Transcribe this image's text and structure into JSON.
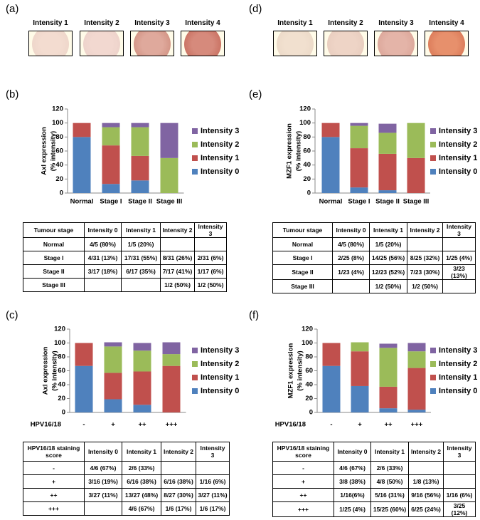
{
  "panels": [
    {
      "label": "(a)",
      "intensities": [
        "Intensity 1",
        "Intensity 2",
        "Intensity 3",
        "Intensity 4"
      ]
    },
    {
      "label": "(d)",
      "intensities": [
        "Intensity 1",
        "Intensity 2",
        "Intensity 3",
        "Intensity 4"
      ]
    }
  ],
  "chart_data": [
    {
      "type": "bar",
      "stacked": true,
      "panel_label": "(b)",
      "ylabel": [
        "Axl expression",
        "(% intensity)"
      ],
      "categories": [
        "Normal",
        "Stage I",
        "Stage II",
        "Stage III"
      ],
      "series": [
        {
          "name": "Intensity 0",
          "color": "#4f81bd",
          "values": [
            80,
            13,
            18,
            0
          ]
        },
        {
          "name": "Intensity 1",
          "color": "#c0504d",
          "values": [
            20,
            55,
            35,
            0
          ]
        },
        {
          "name": "Intensity 2",
          "color": "#9bbb59",
          "values": [
            0,
            26,
            41,
            50
          ]
        },
        {
          "name": "Intensity 3",
          "color": "#8064a2",
          "values": [
            0,
            6,
            6,
            50
          ]
        }
      ],
      "ylim": [
        0,
        120
      ],
      "yticks": [
        0,
        20,
        40,
        60,
        80,
        100,
        120
      ]
    },
    {
      "type": "bar",
      "stacked": true,
      "panel_label": "(e)",
      "ylabel": [
        "MZF1 expression",
        "(% intensity)"
      ],
      "categories": [
        "Normal",
        "Stage I",
        "Stage II",
        "Stage III"
      ],
      "series": [
        {
          "name": "Intensity 0",
          "color": "#4f81bd",
          "values": [
            80,
            8,
            4,
            0
          ]
        },
        {
          "name": "Intensity 1",
          "color": "#c0504d",
          "values": [
            20,
            56,
            52,
            50
          ]
        },
        {
          "name": "Intensity 2",
          "color": "#9bbb59",
          "values": [
            0,
            32,
            30,
            50
          ]
        },
        {
          "name": "Intensity 3",
          "color": "#8064a2",
          "values": [
            0,
            4,
            13,
            0
          ]
        }
      ],
      "ylim": [
        0,
        120
      ],
      "yticks": [
        0,
        20,
        40,
        60,
        80,
        100,
        120
      ]
    },
    {
      "type": "bar",
      "stacked": true,
      "panel_label": "(c)",
      "ylabel": [
        "Axl expression",
        "(% intensity)"
      ],
      "xlabel": "HPV16/18",
      "categories": [
        "-",
        "+",
        "++",
        "+++"
      ],
      "series": [
        {
          "name": "Intensity 0",
          "color": "#4f81bd",
          "values": [
            67,
            19,
            11,
            0
          ]
        },
        {
          "name": "Intensity 1",
          "color": "#c0504d",
          "values": [
            33,
            38,
            48,
            67
          ]
        },
        {
          "name": "Intensity 2",
          "color": "#9bbb59",
          "values": [
            0,
            38,
            30,
            17
          ]
        },
        {
          "name": "Intensity 3",
          "color": "#8064a2",
          "values": [
            0,
            6,
            11,
            17
          ]
        }
      ],
      "ylim": [
        0,
        120
      ],
      "yticks": [
        0,
        20,
        40,
        60,
        80,
        100,
        120
      ]
    },
    {
      "type": "bar",
      "stacked": true,
      "panel_label": "(f)",
      "ylabel": [
        "MZF1 expression",
        "(% intensity)"
      ],
      "xlabel": "HPV16/18",
      "categories": [
        "-",
        "+",
        "++",
        "+++"
      ],
      "series": [
        {
          "name": "Intensity 0",
          "color": "#4f81bd",
          "values": [
            67,
            38,
            6,
            4
          ]
        },
        {
          "name": "Intensity 1",
          "color": "#c0504d",
          "values": [
            33,
            50,
            31,
            60
          ]
        },
        {
          "name": "Intensity 2",
          "color": "#9bbb59",
          "values": [
            0,
            13,
            56,
            24
          ]
        },
        {
          "name": "Intensity 3",
          "color": "#8064a2",
          "values": [
            0,
            0,
            6,
            12
          ]
        }
      ],
      "ylim": [
        0,
        120
      ],
      "yticks": [
        0,
        20,
        40,
        60,
        80,
        100,
        120
      ]
    }
  ],
  "tables": [
    {
      "header": [
        "Tumour stage",
        "Intensity 0",
        "Intensity 1",
        "Intensity 2",
        "Intensity 3"
      ],
      "rows": [
        [
          "Normal",
          "4/5 (80%)",
          "1/5 (20%)",
          null,
          null
        ],
        [
          "Stage I",
          "4/31 (13%)",
          "17/31 (55%)",
          "8/31 (26%)",
          "2/31 (6%)"
        ],
        [
          "Stage II",
          "3/17 (18%)",
          "6/17 (35%)",
          "7/17 (41%)",
          "1/17 (6%)"
        ],
        [
          "Stage III",
          null,
          null,
          "1/2 (50%)",
          "1/2 (50%)"
        ]
      ]
    },
    {
      "header": [
        "Tumour stage",
        "Intensity 0",
        "Intensity 1",
        "Intensity 2",
        "Intensity 3"
      ],
      "rows": [
        [
          "Normal",
          "4/5 (80%)",
          "1/5 (20%)",
          null,
          null
        ],
        [
          "Stage I",
          "2/25 (8%)",
          "14/25 (56%)",
          "8/25 (32%)",
          "1/25 (4%)"
        ],
        [
          "Stage II",
          "1/23 (4%)",
          "12/23 (52%)",
          "7/23 (30%)",
          "3/23 (13%)"
        ],
        [
          "Stage III",
          null,
          "1/2 (50%)",
          "1/2 (50%)",
          null
        ]
      ]
    },
    {
      "header": [
        "HPV16/18 staining score",
        "Intensity 0",
        "Intensity 1",
        "Intensity 2",
        "Intensity 3"
      ],
      "rows": [
        [
          "-",
          "4/6 (67%)",
          "2/6 (33%)",
          null,
          null
        ],
        [
          "+",
          "3/16 (19%)",
          "6/16 (38%)",
          "6/16 (38%)",
          "1/16 (6%)"
        ],
        [
          "++",
          "3/27 (11%)",
          "13/27 (48%)",
          "8/27 (30%)",
          "3/27 (11%)"
        ],
        [
          "+++",
          null,
          "4/6 (67%)",
          "1/6 (17%)",
          "1/6 (17%)"
        ]
      ]
    },
    {
      "header": [
        "HPV16/18 staining score",
        "Intensity 0",
        "Intensity 1",
        "Intensity 2",
        "Intensity 3"
      ],
      "rows": [
        [
          "-",
          "4/6 (67%)",
          "2/6 (33%)",
          null,
          null
        ],
        [
          "+",
          "3/8 (38%)",
          "4/8 (50%)",
          "1/8 (13%)",
          null
        ],
        [
          "++",
          "1/16(6%)",
          "5/16 (31%)",
          "9/16 (56%)",
          "1/16 (6%)"
        ],
        [
          "+++",
          "1/25 (4%)",
          "15/25 (60%)",
          "6/25 (24%)",
          "3/25 (12%)"
        ]
      ]
    }
  ]
}
